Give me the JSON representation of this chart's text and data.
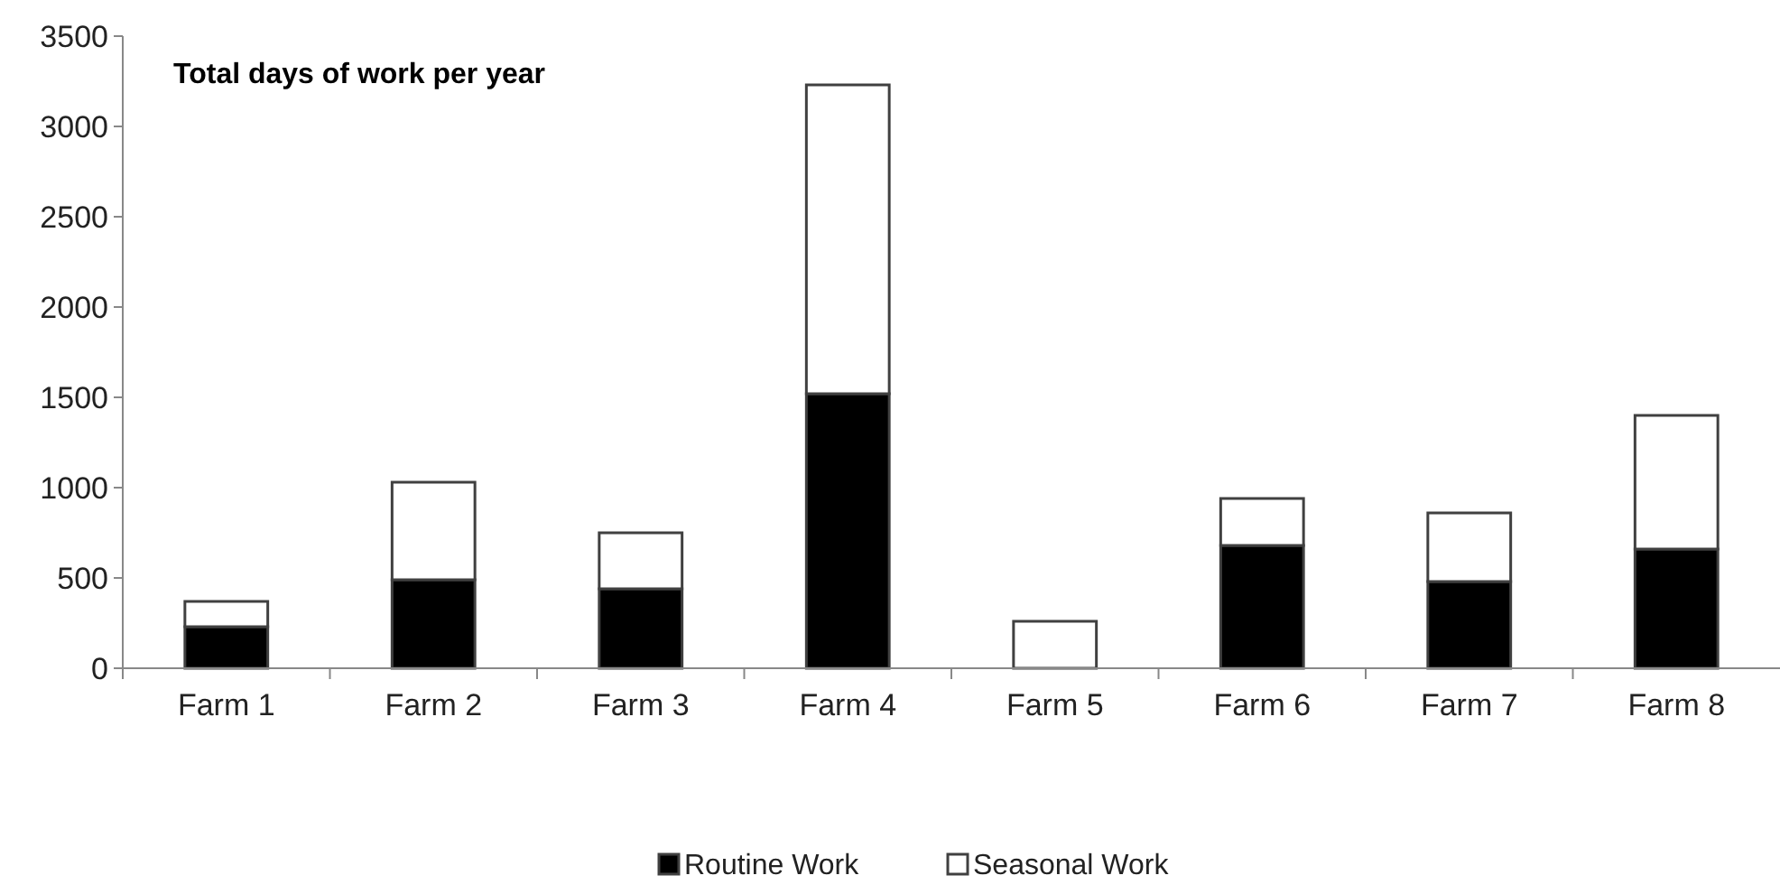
{
  "chart_data": {
    "type": "bar",
    "title": "Total days of work per year",
    "categories": [
      "Farm 1",
      "Farm 2",
      "Farm 3",
      "Farm 4",
      "Farm 5",
      "Farm 6",
      "Farm 7",
      "Farm 8"
    ],
    "stacked": true,
    "series": [
      {
        "name": "Routine Work",
        "color": "#000000",
        "values": [
          230,
          490,
          440,
          1520,
          0,
          680,
          480,
          660
        ]
      },
      {
        "name": "Seasonal Work",
        "color": "#ffffff",
        "values": [
          140,
          540,
          310,
          1710,
          260,
          260,
          380,
          740
        ]
      }
    ],
    "ylim": [
      0,
      3500
    ],
    "yticks": [
      0,
      500,
      1000,
      1500,
      2000,
      2500,
      3000,
      3500
    ],
    "grid": false,
    "legend": "bottom"
  }
}
